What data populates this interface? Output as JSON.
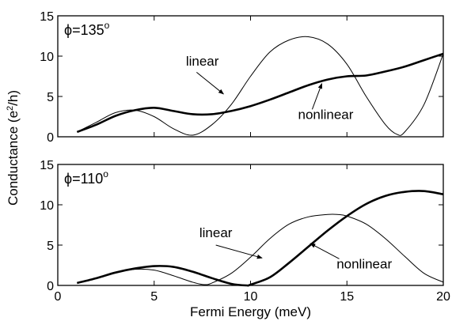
{
  "chart_data": [
    {
      "type": "line",
      "annotation": "ϕ=135",
      "annotation_superscript": "o",
      "xlim": [
        0,
        20
      ],
      "ylim": [
        0,
        15
      ],
      "xticks": [
        0,
        5,
        10,
        15,
        20
      ],
      "yticks": [
        0,
        5,
        10,
        15
      ],
      "series": [
        {
          "name": "linear",
          "style": "thin",
          "x": [
            1,
            2,
            3,
            4,
            5,
            6,
            7,
            8,
            9,
            10,
            11,
            12,
            13,
            14,
            15,
            16,
            17,
            17.6,
            18,
            19,
            20
          ],
          "y": [
            0.6,
            1.8,
            3.0,
            3.3,
            2.5,
            1.0,
            0.2,
            1.5,
            4.0,
            7.5,
            10.5,
            12.0,
            12.4,
            11.5,
            9.0,
            5.0,
            1.5,
            0.3,
            0.6,
            4.0,
            10.3
          ]
        },
        {
          "name": "nonlinear",
          "style": "thick",
          "x": [
            1,
            2,
            3,
            4,
            5,
            6,
            7,
            8,
            9,
            10,
            11,
            12,
            13,
            14,
            15,
            16,
            17,
            18,
            19,
            20
          ],
          "y": [
            0.6,
            1.5,
            2.6,
            3.3,
            3.6,
            3.2,
            2.8,
            2.8,
            3.2,
            3.8,
            4.6,
            5.5,
            6.4,
            7.1,
            7.5,
            7.6,
            8.1,
            8.7,
            9.5,
            10.3
          ]
        }
      ],
      "labels": [
        {
          "text": "linear",
          "x": 7.5,
          "y": 8.8
        },
        {
          "text": "nonlinear",
          "x": 13.9,
          "y": 2.2
        }
      ],
      "arrows": [
        {
          "from": [
            7.2,
            8.0
          ],
          "to": [
            8.6,
            5.3
          ]
        },
        {
          "from": [
            13.2,
            3.4
          ],
          "to": [
            13.7,
            6.6
          ]
        }
      ]
    },
    {
      "type": "line",
      "annotation": "ϕ=110",
      "annotation_superscript": "o",
      "xlim": [
        0,
        20
      ],
      "ylim": [
        0,
        15
      ],
      "xticks": [
        0,
        5,
        10,
        15,
        20
      ],
      "yticks": [
        0,
        5,
        10,
        15
      ],
      "xlabel": "Fermi Energy (meV)",
      "series": [
        {
          "name": "linear",
          "style": "thin",
          "x": [
            1,
            2,
            3,
            4,
            5,
            6,
            7,
            7.6,
            8,
            9,
            10,
            11,
            12,
            13,
            14,
            14.5,
            15,
            16,
            17,
            18,
            19,
            20
          ],
          "y": [
            0.3,
            0.9,
            1.6,
            2.0,
            1.9,
            1.2,
            0.4,
            0.1,
            0.3,
            1.5,
            3.5,
            5.8,
            7.6,
            8.5,
            8.8,
            8.8,
            8.6,
            7.6,
            5.8,
            3.6,
            1.5,
            0.4
          ]
        },
        {
          "name": "nonlinear",
          "style": "thick",
          "x": [
            1,
            2,
            3,
            4,
            5,
            6,
            7,
            8,
            9,
            9.8,
            10,
            11,
            12,
            13,
            14,
            15,
            16,
            17,
            18,
            19,
            20
          ],
          "y": [
            0.3,
            0.9,
            1.6,
            2.1,
            2.4,
            2.3,
            1.7,
            0.9,
            0.2,
            0.0,
            0.1,
            1.0,
            2.8,
            4.8,
            6.8,
            8.6,
            10.1,
            11.1,
            11.6,
            11.7,
            11.3
          ]
        }
      ],
      "labels": [
        {
          "text": "linear",
          "x": 8.2,
          "y": 6.0
        },
        {
          "text": "nonlinear",
          "x": 15.9,
          "y": 2.1
        }
      ],
      "arrows": [
        {
          "from": [
            8.2,
            5.0
          ],
          "to": [
            10.6,
            3.4
          ]
        },
        {
          "from": [
            14.6,
            3.3
          ],
          "to": [
            13.1,
            5.2
          ]
        }
      ]
    }
  ],
  "ylabel": "Conductance (e",
  "ylabel_sup": "2",
  "ylabel_end": "/h)"
}
